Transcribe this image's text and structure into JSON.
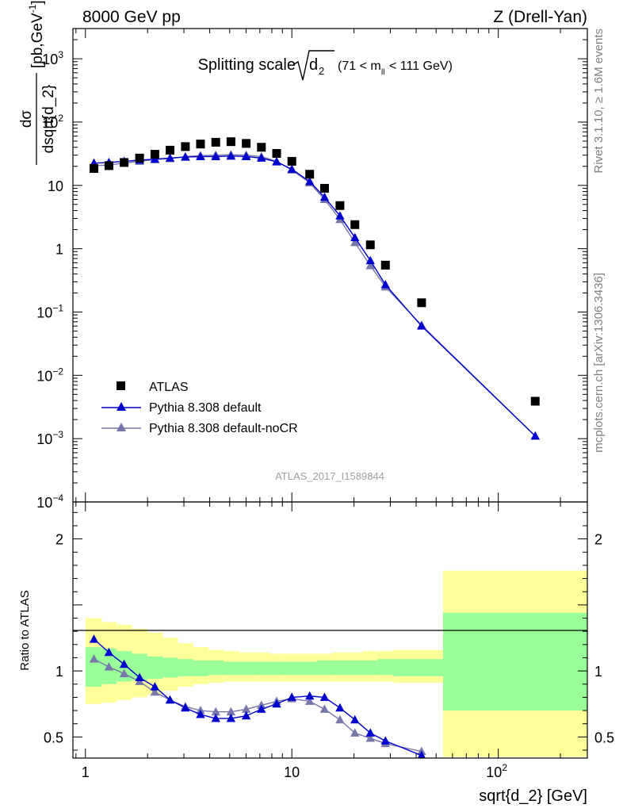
{
  "header": {
    "left": "8000 GeV pp",
    "right": "Z (Drell-Yan)"
  },
  "title": {
    "main": "Splitting scale",
    "sqrt_arg": "d",
    "sqrt_sub": "2",
    "cut_prefix": "(71 < m",
    "cut_sub": "ll",
    "cut_suffix": " < 111 GeV)"
  },
  "side_text": {
    "rivet": "Rivet 3.1.10, ≥ 1.6M events",
    "mcplots": "mcplots.cern.ch [arXiv:1306.3436]"
  },
  "watermark": "ATLAS_2017_I1589844",
  "ylabel_top": {
    "numerator": "dσ",
    "denominator": "dsqrt{d_2}",
    "units_prefix": "[pb,GeV",
    "units_exp": "-1",
    "units_suffix": "]"
  },
  "ylabel_bottom": "Ratio to ATLAS",
  "xlabel": "sqrt{d_2} [GeV]",
  "legend": [
    {
      "label": "ATLAS",
      "color": "#000000",
      "marker": "square"
    },
    {
      "label": "Pythia 8.308 default",
      "color": "#0000cc",
      "marker": "triangle"
    },
    {
      "label": "Pythia 8.308 default-noCR",
      "color": "#7777aa",
      "marker": "triangle"
    }
  ],
  "colors": {
    "band_inner": "#99ff99",
    "band_outer": "#ffff99",
    "atlas": "#000000",
    "default": "#0000cc",
    "nocr": "#7777aa"
  },
  "chart_data": {
    "type": "scatter",
    "x_scale": "log",
    "xlim": [
      0.87,
      270
    ],
    "x_ticks": [
      {
        "v": 1,
        "label": "1"
      },
      {
        "v": 10,
        "label": "10"
      },
      {
        "v": 100,
        "label": "10",
        "exp": "2"
      }
    ],
    "top": {
      "y_scale": "log",
      "ylim": [
        0.0001,
        3000
      ],
      "y_ticks": [
        {
          "v": 1000,
          "label": "10",
          "exp": "3"
        },
        {
          "v": 100,
          "label": "10",
          "exp": "2"
        },
        {
          "v": 10,
          "label": "10"
        },
        {
          "v": 1,
          "label": "1"
        },
        {
          "v": 0.1,
          "label": "10",
          "exp": "−1"
        },
        {
          "v": 0.01,
          "label": "10",
          "exp": "−2"
        },
        {
          "v": 0.001,
          "label": "10",
          "exp": "−3"
        },
        {
          "v": 0.0001,
          "label": "10",
          "exp": "−4"
        }
      ]
    },
    "bottom": {
      "y_scale": "linear",
      "ylim": [
        0.34,
        2.28
      ],
      "y_ticks": [
        {
          "v": 0.5,
          "label": "0.5"
        },
        {
          "v": 1,
          "label": "1"
        },
        {
          "v": 2,
          "label": "2"
        }
      ]
    },
    "x": [
      1.1,
      1.3,
      1.54,
      1.83,
      2.17,
      2.57,
      3.05,
      3.61,
      4.28,
      5.07,
      6.01,
      7.12,
      8.44,
      10.0,
      12.2,
      14.4,
      17.1,
      20.2,
      24.0,
      28.4,
      42.5,
      151
    ],
    "series": [
      {
        "name": "ATLAS",
        "values": [
          18.5,
          20.5,
          23,
          27,
          31,
          36,
          41,
          45,
          48,
          49,
          46,
          40,
          32,
          24,
          15,
          9,
          4.8,
          2.4,
          1.15,
          0.55,
          0.14,
          0.0039
        ]
      },
      {
        "name": "Pythia 8.308 default",
        "values": [
          22.5,
          23,
          24,
          25,
          26,
          27,
          28,
          28.5,
          28.5,
          29,
          28.5,
          27,
          23.5,
          18,
          11.5,
          6.5,
          3.3,
          1.5,
          0.65,
          0.27,
          0.06,
          0.0011
        ]
      },
      {
        "name": "Pythia 8.308 default-noCR",
        "values": [
          20.5,
          21,
          22.5,
          24,
          25.5,
          26.5,
          28.5,
          29.5,
          30,
          30.5,
          30,
          28.5,
          24,
          17.5,
          11,
          6.0,
          2.9,
          1.25,
          0.54,
          0.25,
          0.062,
          0.0011
        ]
      }
    ],
    "ratio_series": [
      {
        "name": "Pythia 8.308 default",
        "values": [
          1.24,
          1.14,
          1.05,
          0.95,
          0.88,
          0.78,
          0.72,
          0.67,
          0.64,
          0.64,
          0.66,
          0.71,
          0.75,
          0.8,
          0.81,
          0.8,
          0.72,
          0.63,
          0.53,
          0.47,
          0.36
        ]
      },
      {
        "name": "Pythia 8.308 default-noCR",
        "values": [
          1.09,
          1.03,
          0.98,
          0.92,
          0.84,
          0.78,
          0.73,
          0.7,
          0.69,
          0.69,
          0.71,
          0.74,
          0.77,
          0.79,
          0.77,
          0.71,
          0.63,
          0.53,
          0.49,
          0.45,
          0.39
        ]
      }
    ],
    "ratio_error": [
      0,
      0,
      0,
      0,
      0,
      0,
      0,
      0,
      0,
      0,
      0,
      0,
      0,
      0,
      0,
      0,
      0,
      0,
      0.015,
      0.02,
      0.03
    ],
    "bands": {
      "edges": [
        1.0,
        1.2,
        1.42,
        1.68,
        2.0,
        2.37,
        2.81,
        3.33,
        3.95,
        4.68,
        5.55,
        6.58,
        7.8,
        9.24,
        11.0,
        13.2,
        15.7,
        18.6,
        22.1,
        26.1,
        31.0,
        54.0,
        270
      ],
      "inner": [
        [
          0.88,
          1.18
        ],
        [
          0.9,
          1.17
        ],
        [
          0.92,
          1.15
        ],
        [
          0.93,
          1.13
        ],
        [
          0.94,
          1.11
        ],
        [
          0.95,
          1.1
        ],
        [
          0.96,
          1.09
        ],
        [
          0.96,
          1.08
        ],
        [
          0.97,
          1.08
        ],
        [
          0.97,
          1.07
        ],
        [
          0.97,
          1.07
        ],
        [
          0.97,
          1.07
        ],
        [
          0.97,
          1.07
        ],
        [
          0.97,
          1.07
        ],
        [
          0.97,
          1.07
        ],
        [
          0.97,
          1.08
        ],
        [
          0.97,
          1.08
        ],
        [
          0.97,
          1.08
        ],
        [
          0.97,
          1.08
        ],
        [
          0.97,
          1.09
        ],
        [
          0.96,
          1.09
        ],
        [
          0.7,
          1.44
        ]
      ],
      "outer": [
        [
          0.75,
          1.4
        ],
        [
          0.76,
          1.37
        ],
        [
          0.78,
          1.35
        ],
        [
          0.8,
          1.32
        ],
        [
          0.82,
          1.29
        ],
        [
          0.85,
          1.25
        ],
        [
          0.88,
          1.21
        ],
        [
          0.9,
          1.18
        ],
        [
          0.91,
          1.16
        ],
        [
          0.92,
          1.15
        ],
        [
          0.92,
          1.14
        ],
        [
          0.92,
          1.14
        ],
        [
          0.92,
          1.13
        ],
        [
          0.92,
          1.13
        ],
        [
          0.92,
          1.13
        ],
        [
          0.92,
          1.13
        ],
        [
          0.92,
          1.14
        ],
        [
          0.92,
          1.14
        ],
        [
          0.92,
          1.15
        ],
        [
          0.92,
          1.15
        ],
        [
          0.91,
          1.16
        ],
        [
          0.35,
          1.76
        ]
      ]
    }
  }
}
